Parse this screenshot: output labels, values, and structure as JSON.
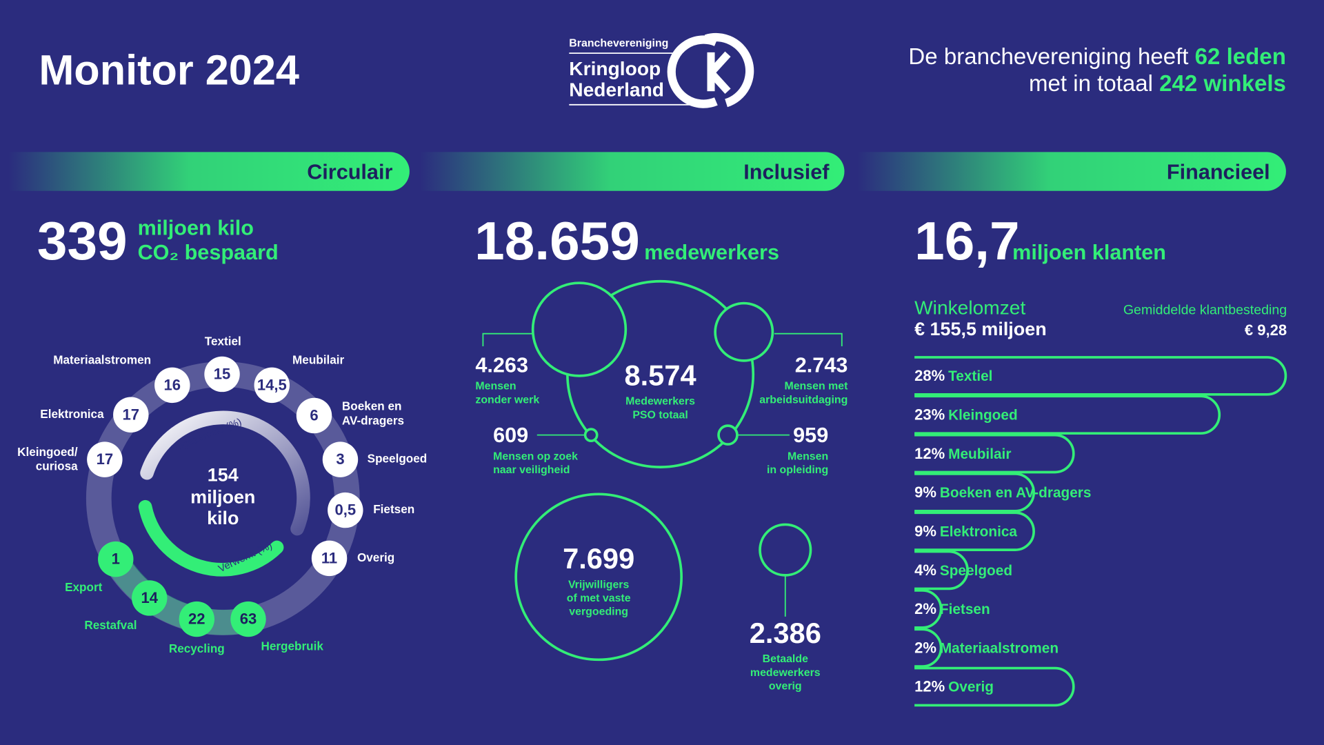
{
  "header": {
    "title": "Monitor 2024",
    "logo": {
      "small": "Branchevereniging",
      "line1": "Kringloop",
      "line2": "Nederland"
    },
    "intro": {
      "line1": [
        "De branchevereniging heeft ",
        "62 leden"
      ],
      "line2": [
        "met in totaal ",
        "242 winkels"
      ]
    }
  },
  "circulair": {
    "heading": "Circulair",
    "big": "339",
    "unit": [
      "miljoen kilo",
      "CO₂ bespaard"
    ],
    "center": [
      "154",
      "miljoen",
      "kilo"
    ],
    "collected_label": "Ingezameld (%)",
    "processed_label": "Verwerkt (%)",
    "collected": [
      {
        "value": "16",
        "label": [
          "Materiaalstromen"
        ]
      },
      {
        "value": "15",
        "label": [
          "Textiel"
        ]
      },
      {
        "value": "14,5",
        "label": [
          "Meubilair"
        ]
      },
      {
        "value": "6",
        "label": [
          "Boeken en",
          "AV-dragers"
        ]
      },
      {
        "value": "3",
        "label": [
          "Speelgoed"
        ]
      },
      {
        "value": "0,5",
        "label": [
          "Fietsen"
        ]
      },
      {
        "value": "11",
        "label": [
          "Overig"
        ]
      },
      {
        "value": "17",
        "label": [
          "Elektronica"
        ]
      },
      {
        "value": "17",
        "label": [
          "Kleingoed/",
          "curiosa"
        ]
      }
    ],
    "processed": [
      {
        "value": "1",
        "label": "Export"
      },
      {
        "value": "14",
        "label": "Restafval"
      },
      {
        "value": "22",
        "label": "Recycling"
      },
      {
        "value": "63",
        "label": "Hergebruik"
      }
    ]
  },
  "inclusief": {
    "heading": "Inclusief",
    "big": "18.659",
    "unit": "medewerkers",
    "nodes": [
      {
        "value": "8.574",
        "label": [
          "Medewerkers",
          "PSO totaal"
        ]
      },
      {
        "value": "4.263",
        "label": [
          "Mensen",
          "zonder werk"
        ]
      },
      {
        "value": "2.743",
        "label": [
          "Mensen met",
          "arbeidsuitdaging"
        ]
      },
      {
        "value": "609",
        "label": [
          "Mensen op zoek",
          "naar veiligheid"
        ]
      },
      {
        "value": "959",
        "label": [
          "Mensen",
          "in opleiding"
        ]
      },
      {
        "value": "7.699",
        "label": [
          "Vrijwilligers",
          "of met vaste",
          "vergoeding"
        ]
      },
      {
        "value": "2.386",
        "label": [
          "Betaalde",
          "medewerkers",
          "overig"
        ]
      }
    ]
  },
  "financieel": {
    "heading": "Financieel",
    "big": "16,7",
    "unit": "miljoen klanten",
    "turnover_label": "Winkelomzet",
    "turnover": "€ 155,5 miljoen",
    "spend_label": "Gemiddelde klantbesteding",
    "spend": "€ 9,28",
    "bars": [
      {
        "value": 28,
        "value_label": "28%",
        "name": "Textiel"
      },
      {
        "value": 23,
        "value_label": "23%",
        "name": "Kleingoed"
      },
      {
        "value": 12,
        "value_label": "12%",
        "name": "Meubilair"
      },
      {
        "value": 9,
        "value_label": "9%",
        "name": "Boeken en AV-dragers"
      },
      {
        "value": 9,
        "value_label": "9%",
        "name": "Elektronica"
      },
      {
        "value": 4,
        "value_label": "4%",
        "name": "Speelgoed"
      },
      {
        "value": 2,
        "value_label": "2%",
        "name": "Fietsen"
      },
      {
        "value": 2,
        "value_label": "2%",
        "name": "Materiaalstromen"
      },
      {
        "value": 12,
        "value_label": "12%",
        "name": "Overig"
      }
    ]
  }
}
